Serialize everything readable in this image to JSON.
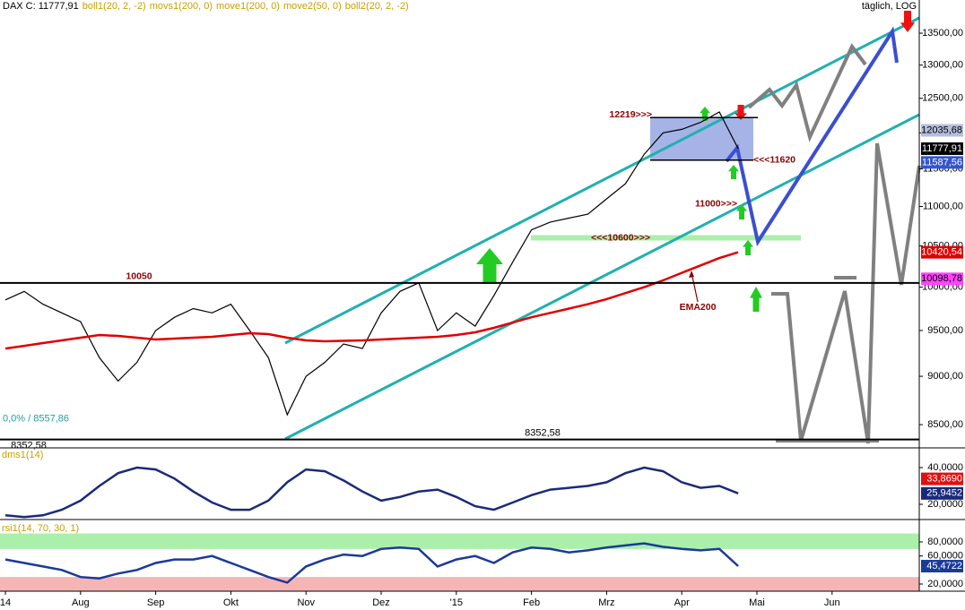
{
  "header": {
    "title": "DAX C: 11777,91",
    "indicators": [
      "boll1(20, 2, -2)",
      "movs1(200, 0)",
      "move1(200, 0)",
      "move2(50, 0)",
      "boll2(20, 2, -2)"
    ],
    "scale_note": "täglich, LOG"
  },
  "chart_data": [
    {
      "type": "line",
      "log": true,
      "x": [
        0,
        0.25,
        0.5,
        0.75,
        1,
        1.25,
        1.5,
        1.75,
        2,
        2.25,
        2.5,
        2.75,
        3,
        3.25,
        3.5,
        3.75,
        4,
        4.25,
        4.5,
        4.75,
        5,
        5.25,
        5.5,
        5.75,
        6,
        6.25,
        6.5,
        6.75,
        7,
        7.25,
        7.5,
        7.75,
        8,
        8.25,
        8.5,
        8.75,
        9,
        9.25,
        9.5,
        9.75
      ],
      "xlim": [
        -0.072,
        12.16
      ],
      "ylim": [
        8270,
        14040
      ],
      "yticks": [
        {
          "value": 13500,
          "label": "13500,00"
        },
        {
          "value": 13000,
          "label": "13000,00"
        },
        {
          "value": 12500,
          "label": "12500,00"
        },
        {
          "value": 12000,
          "label": "12000,00"
        },
        {
          "value": 11500,
          "label": "11500,00"
        },
        {
          "value": 11000,
          "label": "11000,00"
        },
        {
          "value": 10500,
          "label": "10500,00"
        },
        {
          "value": 10000,
          "label": "10000,00"
        },
        {
          "value": 9500,
          "label": "9500,00"
        },
        {
          "value": 9000,
          "label": "9000,00"
        },
        {
          "value": 8500,
          "label": "8500,00"
        }
      ],
      "series": [
        {
          "color": "#000000",
          "values": [
            9850,
            9950,
            9800,
            9700,
            9600,
            9200,
            8950,
            9150,
            9500,
            9650,
            9750,
            9700,
            9800,
            9500,
            9200,
            8600,
            9000,
            9150,
            9350,
            9300,
            9700,
            9950,
            10050,
            9500,
            9700,
            9550,
            9900,
            10300,
            10700,
            10800,
            10850,
            10900,
            11100,
            11300,
            11700,
            12000,
            12050,
            12150,
            12300,
            11777.91
          ]
        },
        {
          "color": "#e00000",
          "values": [
            9300,
            9330,
            9360,
            9390,
            9420,
            9450,
            9440,
            9420,
            9400,
            9410,
            9420,
            9430,
            9450,
            9470,
            9460,
            9420,
            9390,
            9380,
            9385,
            9390,
            9400,
            9410,
            9420,
            9430,
            9450,
            9480,
            9530,
            9590,
            9650,
            9700,
            9750,
            9800,
            9860,
            9930,
            10000,
            10080,
            10170,
            10260,
            10350,
            10420.54
          ]
        }
      ],
      "levels": [
        {
          "value": 10050,
          "label": "10050"
        },
        {
          "value": 8352.58,
          "label": "8352,58"
        },
        {
          "value": 8352.58,
          "label": "8352,58"
        },
        {
          "value": 8557.86,
          "label": "0,0% / 8557,86"
        },
        {
          "value": 12219,
          "label": "12219>>>"
        },
        {
          "value": 11620,
          "label": "<<<11620"
        },
        {
          "value": 11000,
          "label": "11000>>>"
        },
        {
          "value": 10600,
          "label": "<<<10600>>>"
        }
      ],
      "annotation": "EMA200",
      "last_values": [
        {
          "value": 12035.68,
          "label": "12035,68",
          "color": "#b4bedc"
        },
        {
          "value": 11777.91,
          "label": "11777,91",
          "color": "#000000"
        },
        {
          "value": 11587.56,
          "label": "11587,56",
          "color": "#3355cc"
        },
        {
          "value": 10420.54,
          "label": "10420,54",
          "color": "#e00000"
        },
        {
          "value": 10098.78,
          "label": "10098,78",
          "color": "#ff44ff"
        }
      ]
    },
    {
      "type": "line",
      "title": "dms1(14)",
      "ylim": [
        11.7,
        49.3
      ],
      "yticks": [
        {
          "value": 40,
          "label": "40,0000"
        },
        {
          "value": 20,
          "label": "20,0000"
        }
      ],
      "series": [
        {
          "color": "#1a2a7a",
          "values": [
            14,
            13,
            14,
            17,
            22,
            30,
            37,
            40,
            39,
            34,
            27,
            21,
            17,
            17,
            22,
            32,
            39,
            38,
            33,
            27,
            22,
            24,
            27,
            28,
            24,
            19,
            17,
            21,
            25,
            28,
            29,
            30,
            32,
            37,
            40,
            38,
            32,
            29,
            30,
            25.9452
          ]
        }
      ],
      "last_values": [
        {
          "value": 33.869,
          "label": "33,8690",
          "color": "#e01010"
        },
        {
          "value": 25.9452,
          "label": "25,9452",
          "color": "#1a2a7a"
        }
      ]
    },
    {
      "type": "line",
      "title": "rsi1(14, 70, 30, 1)",
      "ylim": [
        9.8,
        105.5
      ],
      "yticks": [
        {
          "value": 80,
          "label": "80,0000"
        },
        {
          "value": 60,
          "label": "60,0000"
        },
        {
          "value": 20,
          "label": "20,0000"
        }
      ],
      "bands": [
        {
          "from": 70,
          "to": 92,
          "color": "#aaf0aa"
        },
        {
          "from": 9.8,
          "to": 30,
          "color": "#f5b5b5"
        }
      ],
      "series": [
        {
          "color": "#1a3a9a",
          "values": [
            55,
            50,
            45,
            40,
            30,
            28,
            35,
            40,
            50,
            55,
            55,
            60,
            50,
            40,
            30,
            22,
            45,
            55,
            62,
            60,
            70,
            72,
            70,
            45,
            55,
            60,
            50,
            65,
            72,
            70,
            65,
            68,
            72,
            75,
            78,
            73,
            70,
            68,
            70,
            45.4722
          ]
        }
      ],
      "last_values": [
        {
          "value": 45.4722,
          "label": "45,4722",
          "color": "#1a3a9a"
        }
      ],
      "xticks": [
        {
          "value": 0,
          "label": "14"
        },
        {
          "value": 1,
          "label": "Aug"
        },
        {
          "value": 2,
          "label": "Sep"
        },
        {
          "value": 3,
          "label": "Okt"
        },
        {
          "value": 4,
          "label": "Nov"
        },
        {
          "value": 5,
          "label": "Dez"
        },
        {
          "value": 6,
          "label": "'15"
        },
        {
          "value": 7,
          "label": "Feb"
        },
        {
          "value": 8,
          "label": "Mrz"
        },
        {
          "value": 9,
          "label": "Apr"
        },
        {
          "value": 10,
          "label": "Mai"
        },
        {
          "value": 11,
          "label": "Jun"
        }
      ]
    }
  ]
}
